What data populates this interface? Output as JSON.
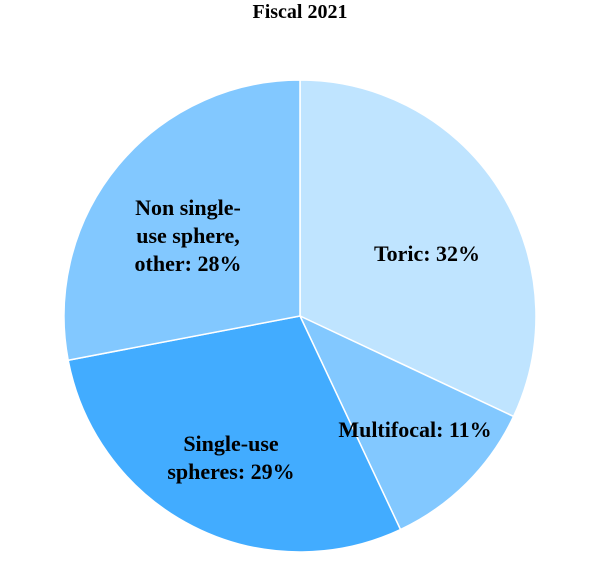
{
  "chart_data": {
    "type": "pie",
    "title": "Fiscal 2021",
    "start_angle_deg": 0,
    "direction": "clockwise",
    "slices": [
      {
        "label_lines": [
          "Toric: 32%"
        ],
        "value": 32,
        "color": "#BFE4FF"
      },
      {
        "label_lines": [
          "Multifocal: 11%"
        ],
        "value": 11,
        "color": "#82C8FF"
      },
      {
        "label_lines": [
          "Single-use",
          "spheres: 29%"
        ],
        "value": 29,
        "color": "#42ACFF"
      },
      {
        "label_lines": [
          "Non single-",
          "use sphere,",
          "other: 28%"
        ],
        "value": 28,
        "color": "#82C8FF"
      }
    ]
  }
}
